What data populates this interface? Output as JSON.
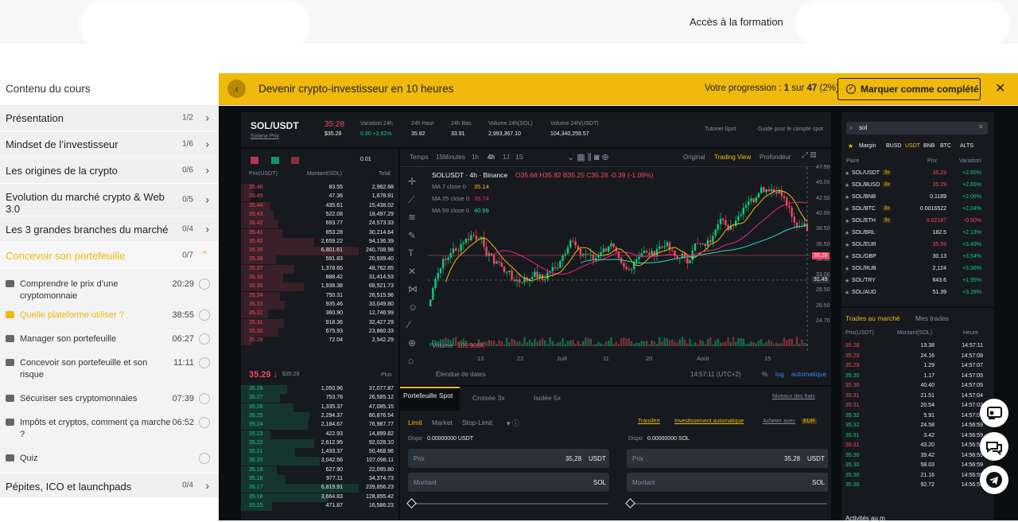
{
  "header": {
    "formation_link": "Accès à la formation"
  },
  "sidebar": {
    "title": "Contenu du cours",
    "chapters_top": [
      {
        "label": "Présentation",
        "count": "1/2"
      },
      {
        "label": "Mindset de l’investisseur",
        "count": "1/6"
      },
      {
        "label": "Les origines de la crypto",
        "count": "0/6"
      },
      {
        "label": "Evolution du marché crypto & Web 3.0",
        "count": "0/5"
      },
      {
        "label": "Les 3 grandes branches du marché",
        "count": "0/4"
      }
    ],
    "active_chapter": {
      "label": "Concevoir son portefeuille",
      "count": "0/7"
    },
    "lessons": [
      {
        "label": "Comprendre le prix d’une cryptomonnaie",
        "duration": "20:29"
      },
      {
        "label": "Quelle plateforme utiliser ?",
        "duration": "38:55"
      },
      {
        "label": "Manager son portefeuille",
        "duration": "06:27"
      },
      {
        "label": "Concevoir son portefeuille et son risque",
        "duration": "11:11"
      },
      {
        "label": "Sécuriser ses cryptomonnaies",
        "duration": "07:39"
      },
      {
        "label": "Impôts et cryptos, comment ça marche ?",
        "duration": "06:52"
      },
      {
        "label": "Quiz",
        "duration": ""
      }
    ],
    "chapter_bottom": {
      "label": "Pépites, ICO et launchpads",
      "count": "0/4"
    }
  },
  "course_bar": {
    "title": "Devenir crypto-investisseur en 10 heures",
    "progress_prefix": "Votre progression : ",
    "progress_done": "1",
    "progress_sep": " sur ",
    "progress_total": "47",
    "progress_pct": " (2%)",
    "complete_button": "Marquer comme complété"
  },
  "exchange": {
    "pair": "SOL/USDT",
    "pair_sub": "Solana Prix",
    "price": "35.28",
    "price_usd": "$35.28",
    "stats": [
      {
        "label": "Variation 24h",
        "value": "0.90 +2.62%"
      },
      {
        "label": "24h Haut",
        "value": "35.82"
      },
      {
        "label": "24h Bas",
        "value": "33.91"
      },
      {
        "label": "Volume 24h(SOL)",
        "value": "2,993,367.10"
      },
      {
        "label": "Volume 24h(USDT)",
        "value": "104,340,259.57"
      }
    ],
    "links": [
      "Tutoriel Spot",
      "Guide pour le compte spot"
    ],
    "orderbook": {
      "decimals": "0.01",
      "headers": [
        "Prix(USDT)",
        "Montant(SOL)",
        "Total"
      ],
      "asks": [
        [
          "35.46",
          "83.55",
          "2,962.68"
        ],
        [
          "35.45",
          "47.36",
          "1,678.91"
        ],
        [
          "35.44",
          "435.61",
          "15,438.02"
        ],
        [
          "35.43",
          "522.08",
          "18,497.29"
        ],
        [
          "35.42",
          "693.77",
          "24,573.33"
        ],
        [
          "35.41",
          "853.28",
          "30,214.64"
        ],
        [
          "35.40",
          "2,659.22",
          "94,136.39"
        ],
        [
          "35.39",
          "6,801.61",
          "240,708.98"
        ],
        [
          "35.38",
          "591.83",
          "20,939.40"
        ],
        [
          "35.37",
          "1,378.65",
          "48,762.85"
        ],
        [
          "35.36",
          "888.42",
          "31,414.53"
        ],
        [
          "35.35",
          "1,938.38",
          "68,521.73"
        ],
        [
          "35.34",
          "750.31",
          "26,515.96"
        ],
        [
          "35.33",
          "935.46",
          "33,049.80"
        ],
        [
          "35.32",
          "360.90",
          "12,746.99"
        ],
        [
          "35.31",
          "918.36",
          "32,427.29"
        ],
        [
          "35.30",
          "675.93",
          "23,860.33"
        ],
        [
          "35.29",
          "72.04",
          "2,542.29"
        ]
      ],
      "mid_price": "35.29 ↓",
      "mid_usd": "$35.29",
      "more": "Plus",
      "bids": [
        [
          "35.28",
          "1,050.96",
          "37,077.87"
        ],
        [
          "35.27",
          "753.76",
          "26,585.12"
        ],
        [
          "35.26",
          "1,335.37",
          "47,085.15"
        ],
        [
          "35.25",
          "2,294.37",
          "80,876.54"
        ],
        [
          "35.24",
          "2,184.67",
          "76,987.77"
        ],
        [
          "35.23",
          "422.93",
          "14,899.82"
        ],
        [
          "35.22",
          "2,612.95",
          "92,028.10"
        ],
        [
          "35.21",
          "1,433.37",
          "50,468.96"
        ],
        [
          "35.20",
          "3,042.56",
          "107,098.11"
        ],
        [
          "35.19",
          "627.90",
          "22,095.80"
        ],
        [
          "35.18",
          "977.11",
          "34,374.73"
        ],
        [
          "35.17",
          "6,819.91",
          "239,856.23"
        ],
        [
          "35.16",
          "3,664.83",
          "128,855.42"
        ],
        [
          "35.15",
          "471.87",
          "16,586.23"
        ]
      ]
    },
    "chart": {
      "toolbar": [
        "Temps",
        "15Minutes",
        "1h",
        "4h",
        "1J",
        "1S"
      ],
      "views": [
        "Original",
        "Trading View",
        "Profondeur"
      ],
      "legend": "SOLUSDT · 4h · Binance",
      "ohlc": "O35.68 H35.82 B35.25 C35.28 -0.39 (-1.09%)",
      "ma": [
        {
          "label": "MA 7 close 0",
          "value": "35.14"
        },
        {
          "label": "MA 25 close 0",
          "value": "35.74"
        },
        {
          "label": "MA 99 close 0",
          "value": "40.99"
        }
      ],
      "volume_label": "Volume",
      "volume_value": "105.908K",
      "y_ticks": [
        "47.50",
        "46.00",
        "42.50",
        "40.00",
        "38.50",
        "36.50",
        "34.50",
        "33.00",
        "28.50",
        "26.50",
        "24.70"
      ],
      "x_ticks": [
        "13",
        "22",
        "Juill",
        "11",
        "20",
        "Août",
        "15"
      ],
      "last_price": "35.28",
      "cursor_price": "31.49",
      "date_range": "Étendue de dates",
      "time": "14:57:11 (UTC+2)",
      "pct": "%",
      "log": "log",
      "auto": "automatique",
      "colors": {
        "up": "#0ecb81",
        "down": "#f6465d",
        "ma7": "#f0b90b",
        "ma25": "#e91e8c",
        "ma99": "#2dd4bf"
      }
    },
    "order_form": {
      "tabs": [
        "Portefeuille Spot",
        "Croisée 3x",
        "Isolée 5x"
      ],
      "fees": "Niveaux des frais",
      "types": [
        "Limit",
        "Market",
        "Stop-Limit"
      ],
      "links": [
        "Transfert",
        "Investissement automatique",
        "Acheter avec",
        "EUR"
      ],
      "buy": {
        "dispo": "Dispo",
        "dispo_val": "0.00000000 USDT",
        "price_label": "Prix",
        "price": "35,28",
        "price_unit": "USDT",
        "amount_label": "Montant",
        "amount_unit": "SOL"
      },
      "sell": {
        "dispo": "Dispo",
        "dispo_val": "0.00000000 SOL",
        "price_label": "Prix",
        "price": "35,28",
        "price_unit": "USDT",
        "amount_label": "Montant",
        "amount_unit": "SOL"
      }
    },
    "market_list": {
      "search": "sol",
      "filters": [
        "Margin",
        "BUSD",
        "USDT",
        "BNB",
        "BTC",
        "ALTS"
      ],
      "headers": [
        "Paire",
        "Prix",
        "Variation"
      ],
      "pairs": [
        [
          "SOL/USDT",
          "3x",
          "35.29",
          "+2.65%"
        ],
        [
          "SOL/BUSD",
          "3x",
          "35.29",
          "+2.65%"
        ],
        [
          "SOL/BNB",
          "",
          "0.1189",
          "+2.06%"
        ],
        [
          "SOL/BTC",
          "3x",
          "0.0016522",
          "+2.04%"
        ],
        [
          "SOL/ETH",
          "3x",
          "0.02187",
          "-0.50%"
        ],
        [
          "SOL/BRL",
          "",
          "182.5",
          "+2.13%"
        ],
        [
          "SOL/EUR",
          "",
          "35.59",
          "+3.49%"
        ],
        [
          "SOL/GBP",
          "",
          "30.13",
          "+3.54%"
        ],
        [
          "SOL/RUB",
          "",
          "2,124",
          "+3.36%"
        ],
        [
          "SOL/TRY",
          "",
          "643.6",
          "+1.95%"
        ],
        [
          "SOL/AUD",
          "",
          "51.39",
          "+3.28%"
        ]
      ]
    },
    "trades": {
      "tabs": [
        "Trades au marché",
        "Mes trades"
      ],
      "headers": [
        "Prix(USDT)",
        "Montant(SOL)",
        "Heure"
      ],
      "rows": [
        [
          "35.28",
          "13.38",
          "14:57:11",
          "r"
        ],
        [
          "35.29",
          "24.16",
          "14:57:08",
          "r"
        ],
        [
          "35.29",
          "1.29",
          "14:57:07",
          "r"
        ],
        [
          "35.30",
          "1.17",
          "14:57:05",
          "g"
        ],
        [
          "35.30",
          "40.40",
          "14:57:05",
          "r"
        ],
        [
          "35.31",
          "21.51",
          "14:57:04",
          "r"
        ],
        [
          "35.31",
          "20.54",
          "14:57:02",
          "r"
        ],
        [
          "35.32",
          "5.91",
          "14:57:00",
          "g"
        ],
        [
          "35.32",
          "24.58",
          "14:56:59",
          "g"
        ],
        [
          "35.31",
          "3.42",
          "14:56:59",
          "g"
        ],
        [
          "35.31",
          "43.20",
          "14:56:59",
          "r"
        ],
        [
          "35.30",
          "39.42",
          "14:56:59",
          "g"
        ],
        [
          "35.30",
          "58.03",
          "14:56:59",
          "g"
        ],
        [
          "35.30",
          "21.16",
          "14:56:59",
          "g"
        ],
        [
          "35.30",
          "92.72",
          "14:56:59",
          "g"
        ]
      ],
      "activity": "Activités au m"
    }
  }
}
